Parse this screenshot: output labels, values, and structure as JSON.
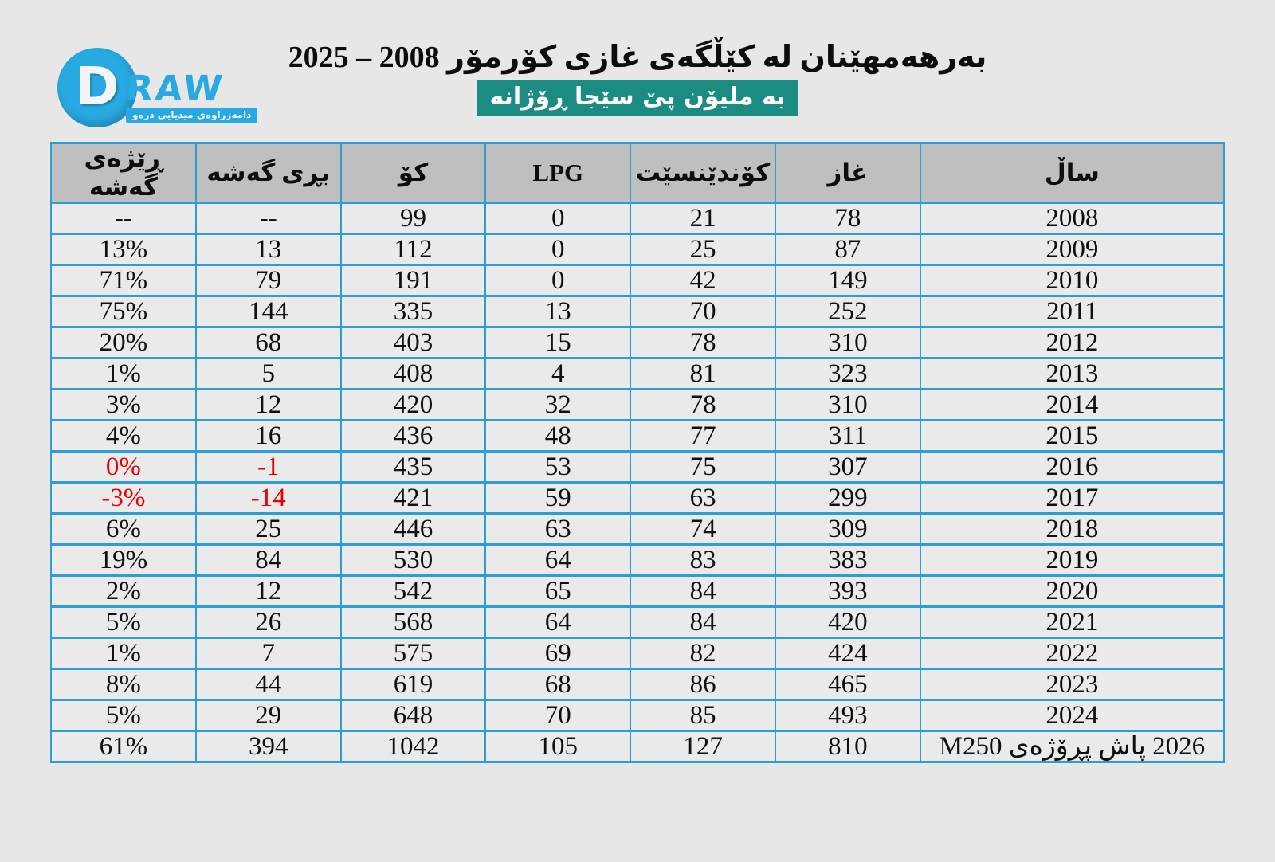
{
  "colors": {
    "page_bg": "#e7e7e7",
    "table_border": "#2d9dd3",
    "header_bg": "#bfbfbf",
    "cell_bg": "#eaeaea",
    "negative_text": "#e60000",
    "teal": "#1a8c82",
    "logo_blue": "#29a9e1",
    "title_text": "#0d0d0d"
  },
  "logo": {
    "circle_letter": "D",
    "wordmark": "RAW",
    "tagline": "دامەزراوەی میدیایی درەو"
  },
  "header": {
    "title": "بەرهەمهێنان لە کێڵگەی غازی کۆرمۆر 2008 – 2025",
    "subtitle": "بە ملیۆن پێ سێجا ڕۆژانە"
  },
  "table": {
    "columns": [
      {
        "key": "year",
        "label": "ساڵ"
      },
      {
        "key": "gas",
        "label": "غاز"
      },
      {
        "key": "condensate",
        "label": "کۆندێنسێت"
      },
      {
        "key": "lpg",
        "label": "LPG"
      },
      {
        "key": "total",
        "label": "کۆ"
      },
      {
        "key": "growth",
        "label": "بڕی گەشە"
      },
      {
        "key": "growth_pct",
        "label": "ڕێژەی گەشە"
      }
    ],
    "rows": [
      {
        "year": "2008",
        "gas": "78",
        "condensate": "21",
        "lpg": "0",
        "total": "99",
        "growth": "--",
        "growth_pct": "--",
        "negative": false
      },
      {
        "year": "2009",
        "gas": "87",
        "condensate": "25",
        "lpg": "0",
        "total": "112",
        "growth": "13",
        "growth_pct": "13%",
        "negative": false
      },
      {
        "year": "2010",
        "gas": "149",
        "condensate": "42",
        "lpg": "0",
        "total": "191",
        "growth": "79",
        "growth_pct": "71%",
        "negative": false
      },
      {
        "year": "2011",
        "gas": "252",
        "condensate": "70",
        "lpg": "13",
        "total": "335",
        "growth": "144",
        "growth_pct": "75%",
        "negative": false
      },
      {
        "year": "2012",
        "gas": "310",
        "condensate": "78",
        "lpg": "15",
        "total": "403",
        "growth": "68",
        "growth_pct": "20%",
        "negative": false
      },
      {
        "year": "2013",
        "gas": "323",
        "condensate": "81",
        "lpg": "4",
        "total": "408",
        "growth": "5",
        "growth_pct": "1%",
        "negative": false
      },
      {
        "year": "2014",
        "gas": "310",
        "condensate": "78",
        "lpg": "32",
        "total": "420",
        "growth": "12",
        "growth_pct": "3%",
        "negative": false
      },
      {
        "year": "2015",
        "gas": "311",
        "condensate": "77",
        "lpg": "48",
        "total": "436",
        "growth": "16",
        "growth_pct": "4%",
        "negative": false
      },
      {
        "year": "2016",
        "gas": "307",
        "condensate": "75",
        "lpg": "53",
        "total": "435",
        "growth": "-1",
        "growth_pct": "0%",
        "negative": true
      },
      {
        "year": "2017",
        "gas": "299",
        "condensate": "63",
        "lpg": "59",
        "total": "421",
        "growth": "-14",
        "growth_pct": "-3%",
        "negative": true
      },
      {
        "year": "2018",
        "gas": "309",
        "condensate": "74",
        "lpg": "63",
        "total": "446",
        "growth": "25",
        "growth_pct": "6%",
        "negative": false
      },
      {
        "year": "2019",
        "gas": "383",
        "condensate": "83",
        "lpg": "64",
        "total": "530",
        "growth": "84",
        "growth_pct": "19%",
        "negative": false
      },
      {
        "year": "2020",
        "gas": "393",
        "condensate": "84",
        "lpg": "65",
        "total": "542",
        "growth": "12",
        "growth_pct": "2%",
        "negative": false
      },
      {
        "year": "2021",
        "gas": "420",
        "condensate": "84",
        "lpg": "64",
        "total": "568",
        "growth": "26",
        "growth_pct": "5%",
        "negative": false
      },
      {
        "year": "2022",
        "gas": "424",
        "condensate": "82",
        "lpg": "69",
        "total": "575",
        "growth": "7",
        "growth_pct": "1%",
        "negative": false
      },
      {
        "year": "2023",
        "gas": "465",
        "condensate": "86",
        "lpg": "68",
        "total": "619",
        "growth": "44",
        "growth_pct": "8%",
        "negative": false
      },
      {
        "year": "2024",
        "gas": "493",
        "condensate": "85",
        "lpg": "70",
        "total": "648",
        "growth": "29",
        "growth_pct": "5%",
        "negative": false
      },
      {
        "year": "2026 پاش پڕۆژەی M250",
        "gas": "810",
        "condensate": "127",
        "lpg": "105",
        "total": "1042",
        "growth": "394",
        "growth_pct": "61%",
        "negative": false
      }
    ]
  },
  "chart_data": {
    "type": "table",
    "title": "بەرهەمهێنان لە کێڵگەی غازی کۆرمۆر 2008 – 2025",
    "subtitle": "بە ملیۆن پێ سێجا ڕۆژانە",
    "columns": [
      "ساڵ",
      "غاز",
      "کۆندێنسێت",
      "LPG",
      "کۆ",
      "بڕی گەشە",
      "ڕێژەی گەشە"
    ],
    "rows": [
      [
        "2008",
        78,
        21,
        0,
        99,
        null,
        null
      ],
      [
        "2009",
        87,
        25,
        0,
        112,
        13,
        "13%"
      ],
      [
        "2010",
        149,
        42,
        0,
        191,
        79,
        "71%"
      ],
      [
        "2011",
        252,
        70,
        13,
        335,
        144,
        "75%"
      ],
      [
        "2012",
        310,
        78,
        15,
        403,
        68,
        "20%"
      ],
      [
        "2013",
        323,
        81,
        4,
        408,
        5,
        "1%"
      ],
      [
        "2014",
        310,
        78,
        32,
        420,
        12,
        "3%"
      ],
      [
        "2015",
        311,
        77,
        48,
        436,
        16,
        "4%"
      ],
      [
        "2016",
        307,
        75,
        53,
        435,
        -1,
        "0%"
      ],
      [
        "2017",
        299,
        63,
        59,
        421,
        -14,
        "-3%"
      ],
      [
        "2018",
        309,
        74,
        63,
        446,
        25,
        "6%"
      ],
      [
        "2019",
        383,
        83,
        64,
        530,
        84,
        "19%"
      ],
      [
        "2020",
        393,
        84,
        65,
        542,
        12,
        "2%"
      ],
      [
        "2021",
        420,
        84,
        64,
        568,
        26,
        "5%"
      ],
      [
        "2022",
        424,
        82,
        69,
        575,
        7,
        "1%"
      ],
      [
        "2023",
        465,
        86,
        68,
        619,
        44,
        "8%"
      ],
      [
        "2024",
        493,
        85,
        70,
        648,
        29,
        "5%"
      ],
      [
        "2026 پاش پڕۆژەی M250",
        810,
        127,
        105,
        1042,
        394,
        "61%"
      ]
    ]
  }
}
